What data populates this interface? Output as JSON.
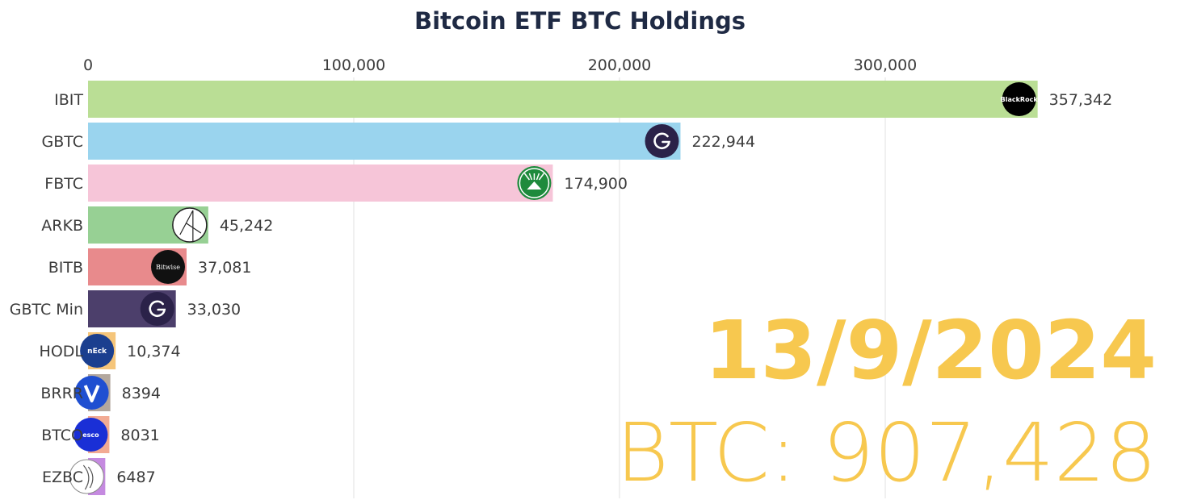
{
  "chart_data": {
    "type": "bar",
    "orientation": "horizontal",
    "title": "Bitcoin ETF BTC Holdings",
    "xlabel": "",
    "ylabel": "",
    "xlim": [
      0,
      360000
    ],
    "ticks": [
      {
        "value": 0,
        "label": "0"
      },
      {
        "value": 100000,
        "label": "100,000"
      },
      {
        "value": 200000,
        "label": "200,000"
      },
      {
        "value": 300000,
        "label": "300,000"
      }
    ],
    "grid": true,
    "date": "13/9/2024",
    "total_label": "BTC: 907,428",
    "series": [
      {
        "name": "IBIT",
        "value": 357342,
        "value_label": "357,342",
        "color": "#bade95",
        "logo": "blackrock-logo-icon",
        "logo_text": "BlackRock"
      },
      {
        "name": "GBTC",
        "value": 222944,
        "value_label": "222,944",
        "color": "#9ad4ee",
        "logo": "grayscale-logo-icon"
      },
      {
        "name": "FBTC",
        "value": 174900,
        "value_label": "174,900",
        "color": "#f6c5d8",
        "logo": "fidelity-logo-icon"
      },
      {
        "name": "ARKB",
        "value": 45242,
        "value_label": "45,242",
        "color": "#97d094",
        "logo": "ark-logo-icon"
      },
      {
        "name": "BITB",
        "value": 37081,
        "value_label": "37,081",
        "color": "#e88a8c",
        "logo": "bitwise-logo-icon",
        "logo_text": "Bitwise"
      },
      {
        "name": "GBTC Min",
        "value": 33030,
        "value_label": "33,030",
        "color": "#4c3f6b",
        "logo": "grayscale-logo-icon"
      },
      {
        "name": "HODL",
        "value": 10374,
        "value_label": "10,374",
        "color": "#f5c57a",
        "logo": "vaneck-logo-icon",
        "logo_text": "nEck"
      },
      {
        "name": "BRRR",
        "value": 8394,
        "value_label": "8394",
        "color": "#b3a79d",
        "logo": "valkyrie-logo-icon"
      },
      {
        "name": "BTCO",
        "value": 8031,
        "value_label": "8031",
        "color": "#f2aa93",
        "logo": "invesco-logo-icon",
        "logo_text": "esco"
      },
      {
        "name": "EZBC",
        "value": 6487,
        "value_label": "6487",
        "color": "#c58ae0",
        "logo": "franklin-logo-icon"
      }
    ]
  }
}
